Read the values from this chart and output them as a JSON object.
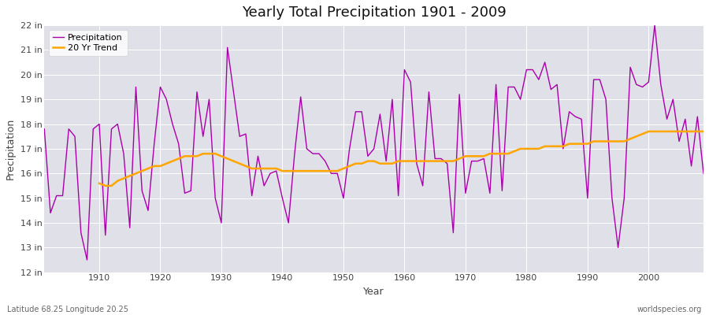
{
  "title": "Yearly Total Precipitation 1901 - 2009",
  "xlabel": "Year",
  "ylabel": "Precipitation",
  "fig_bg_color": "#ffffff",
  "plot_bg_color": "#e0e0e8",
  "precip_color": "#aa00aa",
  "trend_color": "#ffa500",
  "precip_label": "Precipitation",
  "trend_label": "20 Yr Trend",
  "footer_left": "Latitude 68.25 Longitude 20.25",
  "footer_right": "worldspecies.org",
  "ylim": [
    12,
    22
  ],
  "xlim": [
    1901,
    2009
  ],
  "years": [
    1901,
    1902,
    1903,
    1904,
    1905,
    1906,
    1907,
    1908,
    1909,
    1910,
    1911,
    1912,
    1913,
    1914,
    1915,
    1916,
    1917,
    1918,
    1919,
    1920,
    1921,
    1922,
    1923,
    1924,
    1925,
    1926,
    1927,
    1928,
    1929,
    1930,
    1931,
    1932,
    1933,
    1934,
    1935,
    1936,
    1937,
    1938,
    1939,
    1940,
    1941,
    1942,
    1943,
    1944,
    1945,
    1946,
    1947,
    1948,
    1949,
    1950,
    1951,
    1952,
    1953,
    1954,
    1955,
    1956,
    1957,
    1958,
    1959,
    1960,
    1961,
    1962,
    1963,
    1964,
    1965,
    1966,
    1967,
    1968,
    1969,
    1970,
    1971,
    1972,
    1973,
    1974,
    1975,
    1976,
    1977,
    1978,
    1979,
    1980,
    1981,
    1982,
    1983,
    1984,
    1985,
    1986,
    1987,
    1988,
    1989,
    1990,
    1991,
    1992,
    1993,
    1994,
    1995,
    1996,
    1997,
    1998,
    1999,
    2000,
    2001,
    2002,
    2003,
    2004,
    2005,
    2006,
    2007,
    2008,
    2009
  ],
  "precip": [
    17.8,
    14.4,
    15.1,
    15.1,
    17.8,
    17.5,
    13.6,
    12.5,
    17.8,
    18.0,
    13.5,
    17.8,
    18.0,
    16.8,
    13.8,
    19.5,
    15.3,
    14.5,
    17.2,
    19.5,
    19.0,
    18.0,
    17.2,
    15.2,
    15.3,
    19.3,
    17.5,
    19.0,
    15.0,
    14.0,
    21.1,
    19.3,
    17.5,
    17.6,
    15.1,
    16.7,
    15.5,
    16.0,
    16.1,
    15.0,
    14.0,
    16.8,
    19.1,
    17.0,
    16.8,
    16.8,
    16.5,
    16.0,
    16.0,
    15.0,
    17.0,
    18.5,
    18.5,
    16.7,
    17.0,
    18.4,
    16.5,
    19.0,
    15.1,
    20.2,
    19.7,
    16.4,
    15.5,
    19.3,
    16.6,
    16.6,
    16.4,
    13.6,
    19.2,
    15.2,
    16.5,
    16.5,
    16.6,
    15.2,
    19.6,
    15.3,
    19.5,
    19.5,
    19.0,
    20.2,
    20.2,
    19.8,
    20.5,
    19.4,
    19.6,
    17.0,
    18.5,
    18.3,
    18.2,
    15.0,
    19.8,
    19.8,
    19.0,
    15.0,
    13.0,
    15.0,
    20.3,
    19.6,
    19.5,
    19.7,
    22.0,
    19.6,
    18.2,
    19.0,
    17.3,
    18.2,
    16.3,
    18.3,
    16.0
  ],
  "trend_start_year": 1910,
  "trend": [
    15.6,
    15.5,
    15.5,
    15.7,
    15.8,
    15.9,
    16.0,
    16.1,
    16.2,
    16.3,
    16.3,
    16.4,
    16.5,
    16.6,
    16.7,
    16.7,
    16.7,
    16.8,
    16.8,
    16.8,
    16.7,
    16.6,
    16.5,
    16.4,
    16.3,
    16.2,
    16.2,
    16.2,
    16.2,
    16.2,
    16.1,
    16.1,
    16.1,
    16.1,
    16.1,
    16.1,
    16.1,
    16.1,
    16.1,
    16.1,
    16.2,
    16.3,
    16.4,
    16.4,
    16.5,
    16.5,
    16.4,
    16.4,
    16.4,
    16.5,
    16.5,
    16.5,
    16.5,
    16.5,
    16.5,
    16.5,
    16.5,
    16.5,
    16.5,
    16.6,
    16.7,
    16.7,
    16.7,
    16.7,
    16.8,
    16.8,
    16.8,
    16.8,
    16.9,
    17.0,
    17.0,
    17.0,
    17.0,
    17.1,
    17.1,
    17.1,
    17.1,
    17.2,
    17.2,
    17.2,
    17.2,
    17.3,
    17.3,
    17.3,
    17.3,
    17.3,
    17.3,
    17.4,
    17.5,
    17.6,
    17.7,
    17.7,
    17.7,
    17.7,
    17.7,
    17.7,
    17.7,
    17.7,
    17.7,
    17.7
  ]
}
